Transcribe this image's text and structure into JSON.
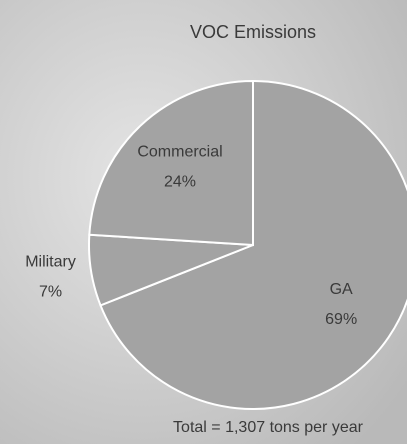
{
  "chart_data": {
    "type": "pie",
    "title": "VOC Emissions",
    "categories": [
      "GA",
      "Military",
      "Commercial"
    ],
    "values": [
      69,
      7,
      24
    ],
    "value_labels": [
      "69%",
      "7%",
      "24%"
    ],
    "color": "#a3a3a3",
    "annotation": "Total = 1,307 tons per year"
  }
}
